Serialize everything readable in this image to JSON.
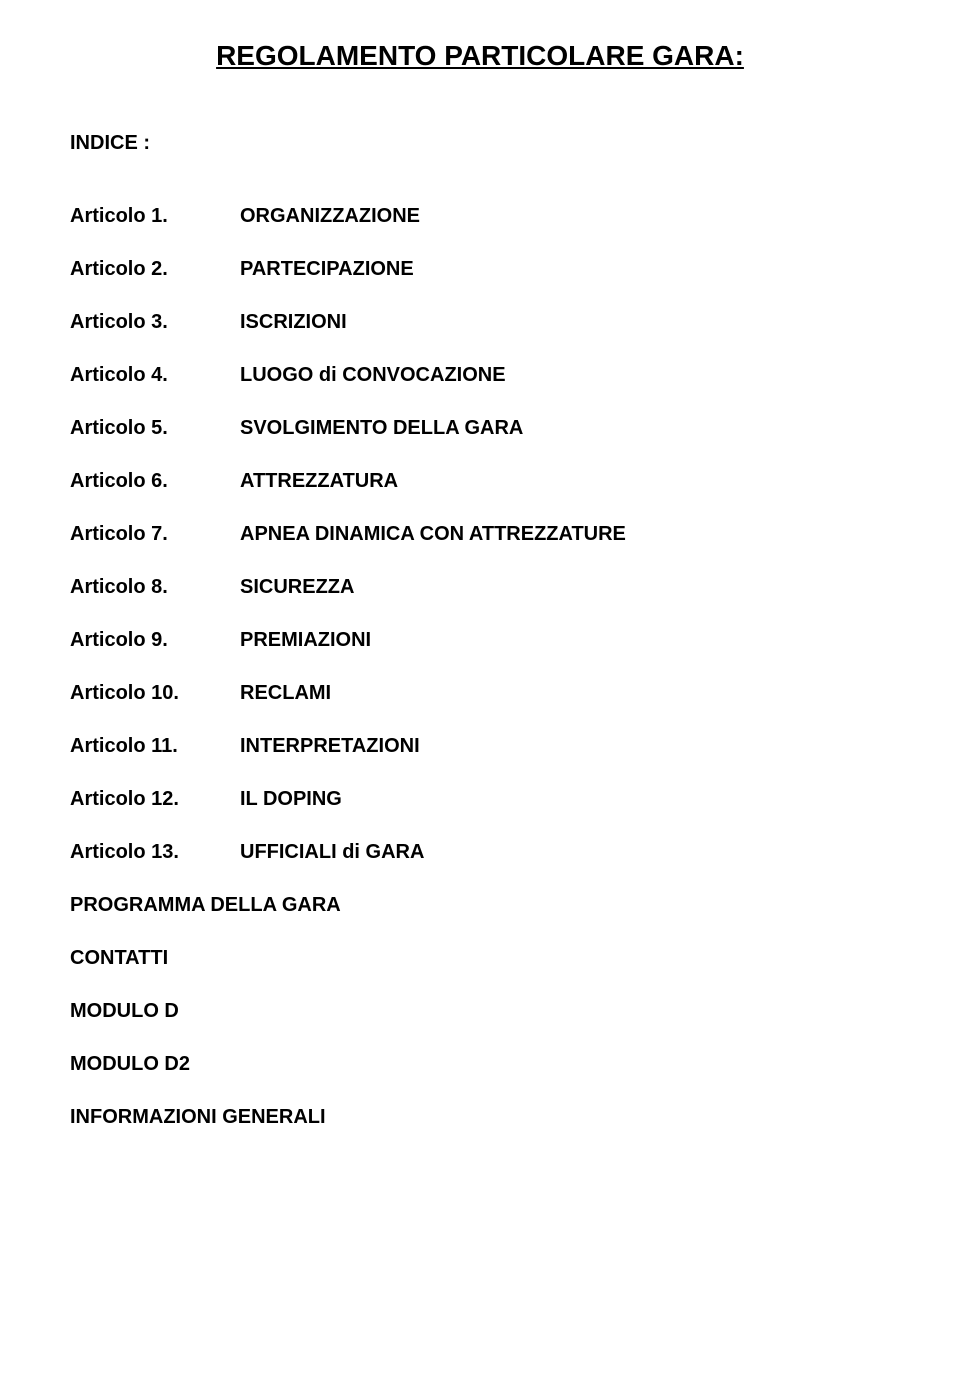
{
  "title": "REGOLAMENTO PARTICOLARE GARA:",
  "title_fontsize": 28,
  "index_label": "INDICE :",
  "body_fontsize": 20,
  "text_color": "#000000",
  "background_color": "#ffffff",
  "items": [
    {
      "label": "Articolo 1.",
      "value": "ORGANIZZAZIONE"
    },
    {
      "label": "Articolo 2.",
      "value": "PARTECIPAZIONE"
    },
    {
      "label": "Articolo 3.",
      "value": "ISCRIZIONI"
    },
    {
      "label": "Articolo 4.",
      "value": "LUOGO di CONVOCAZIONE"
    },
    {
      "label": "Articolo 5.",
      "value": "SVOLGIMENTO DELLA GARA"
    },
    {
      "label": "Articolo 6.",
      "value": "ATTREZZATURA"
    },
    {
      "label": "Articolo 7.",
      "value": "APNEA DINAMICA CON ATTREZZATURE"
    },
    {
      "label": "Articolo 8.",
      "value": "SICUREZZA"
    },
    {
      "label": "Articolo 9.",
      "value": "PREMIAZIONI"
    },
    {
      "label": "Articolo 10.",
      "value": "RECLAMI"
    },
    {
      "label": "Articolo 11.",
      "value": "INTERPRETAZIONI"
    },
    {
      "label": "Articolo 12.",
      "value": "IL DOPING"
    },
    {
      "label": "Articolo 13.",
      "value": "UFFICIALI di GARA"
    }
  ],
  "footer_lines": [
    "PROGRAMMA DELLA GARA",
    "CONTATTI",
    "MODULO D",
    "MODULO D2",
    "INFORMAZIONI GENERALI"
  ]
}
